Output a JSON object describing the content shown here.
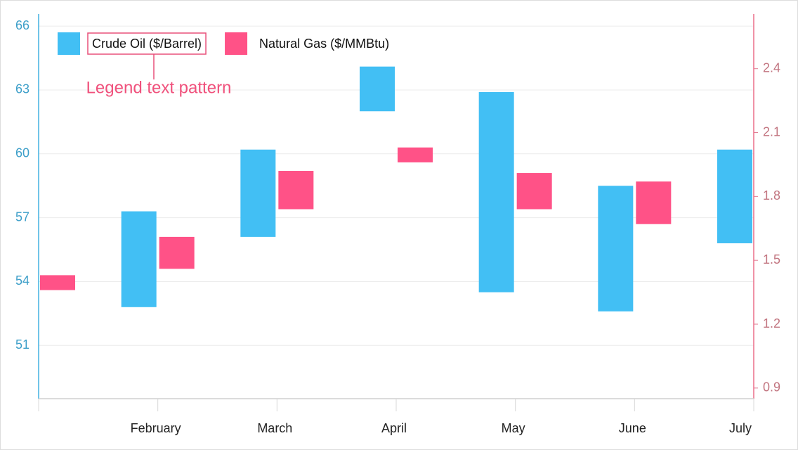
{
  "chart_data": {
    "type": "range-bar",
    "categories": [
      null,
      "February",
      "March",
      "April",
      "May",
      "June",
      "July"
    ],
    "series": [
      {
        "name": "Crude Oil ($/Barrel)",
        "color": "#42bff4",
        "axis": "y",
        "low": [
          null,
          52.8,
          56.1,
          62.0,
          53.5,
          52.6,
          55.8
        ],
        "high": [
          null,
          57.3,
          60.2,
          64.1,
          62.9,
          58.5,
          60.2
        ]
      },
      {
        "name": "Natural Gas ($/MMBtu)",
        "color": "#ff5287",
        "axis": "y2",
        "low": [
          1.36,
          1.46,
          1.74,
          1.96,
          1.74,
          1.67,
          null
        ],
        "high": [
          1.43,
          1.61,
          1.92,
          2.03,
          1.91,
          1.87,
          null
        ]
      }
    ],
    "ylim": [
      48.5,
      66.5
    ],
    "yticks": [
      51,
      54,
      57,
      60,
      63,
      66
    ],
    "y2lim": [
      0.85,
      2.65
    ],
    "y2ticks": [
      0.9,
      1.2,
      1.5,
      1.8,
      2.1,
      2.4
    ],
    "grid": true,
    "legend": "top-left",
    "annotation": "Legend text pattern"
  }
}
